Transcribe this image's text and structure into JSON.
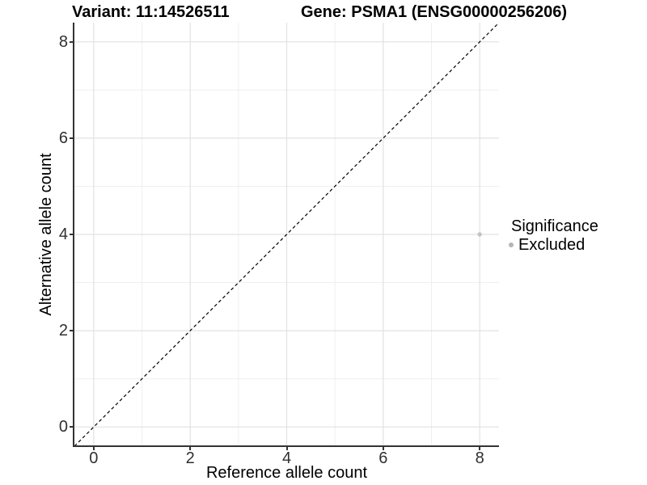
{
  "header": {
    "title_left": "Variant: 11:14526511",
    "title_right": "Gene: PSMA1 (ENSG00000256206)"
  },
  "chart_data": {
    "type": "scatter",
    "title": "Variant: 11:14526511  Gene: PSMA1 (ENSG00000256206)",
    "xlabel": "Reference allele count",
    "ylabel": "Alternative allele count",
    "xlim": [
      -0.4,
      8.4
    ],
    "ylim": [
      -0.4,
      8.4
    ],
    "x_ticks": [
      0,
      2,
      4,
      6,
      8
    ],
    "y_ticks": [
      0,
      2,
      4,
      6,
      8
    ],
    "x_minor_ticks": [
      1,
      3,
      5,
      7
    ],
    "y_minor_ticks": [
      1,
      3,
      5,
      7
    ],
    "grid": true,
    "colors": {
      "grid_major": "#e2e2e2",
      "grid_minor": "#efefef",
      "axis_line": "#333333",
      "reference_line": "#000000"
    },
    "reference_line": {
      "style": "dashed",
      "from": [
        -0.4,
        -0.4
      ],
      "to": [
        8.4,
        8.4
      ],
      "color": "#000000"
    },
    "series": [
      {
        "name": "Excluded",
        "color": "#c3c3c3",
        "points": [
          {
            "x": 8,
            "y": 4
          }
        ]
      }
    ],
    "legend": {
      "title": "Significance",
      "position": "right",
      "items": [
        {
          "label": "Excluded",
          "color": "#b5b5b5"
        }
      ]
    }
  }
}
